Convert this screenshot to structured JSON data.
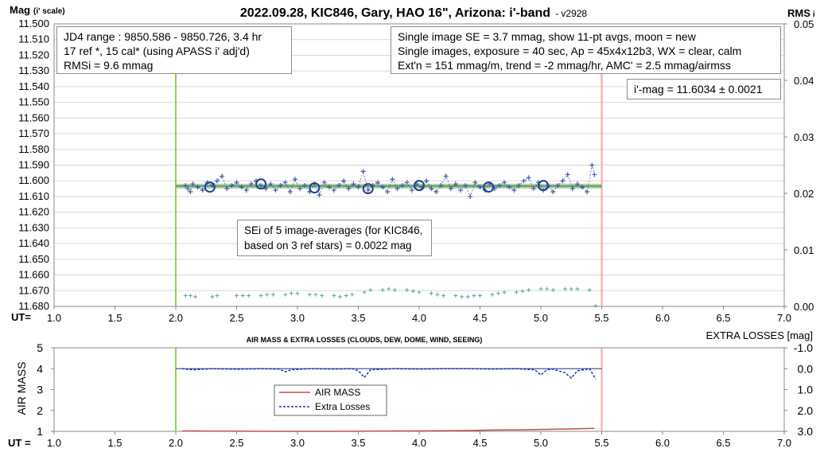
{
  "top_title": "2022.09.28, KIC846, Gary, HAO 16\", Arizona: i'-band",
  "top_title_version": "- v2928",
  "left_axis_label": "Mag",
  "left_axis_label_suffix": "(i' scale)",
  "right_axis_label": "RMS",
  "right_axis_label_suffix": "i",
  "ut_label_top": "UT=",
  "ut_label_bottom": "UT =",
  "info_box_left": [
    "JD4 range : 9850.586 - 9850.726, 3.4  hr",
    "17 ref *, 15 cal* (using APASS i' adj'd)",
    "RMSi = 9.6 mmag"
  ],
  "info_box_right": [
    "Single image SE = 3.7 mmag, show 11-pt avgs, moon = new",
    "Single images, exposure = 40 sec, Ap = 45x4x12b3, WX = clear, calm",
    "Ext'n = 151 mmag/m, trend = -2 mmag/hr, AMC' = 2.5 mmag/airmss"
  ],
  "imag_box": "i'-mag = 11.6034 ± 0.0021",
  "sei_box": [
    "SEi of 5 image-averages (for KIC846,",
    "based on 3 ref stars) = 0.0022 mag"
  ],
  "bottom_title": "AIR MASS & EXTRA LOSSES (CLOUDS, DEW, DOME, WIND, SEEING)",
  "bottom_left_label": "AIR MASS",
  "bottom_right_label": "EXTRA LOSSES [mag]",
  "legend": [
    "AIR MASS",
    "Extra Losses"
  ],
  "colors": {
    "points": "#3b5fa8",
    "avg_circle": "#1f3d99",
    "fit_band": "#8fbc7f",
    "fit_line": "#2e6a2e",
    "rms_points": "#5ba3b0",
    "air_mass": "#c0504d",
    "extra_losses": "#1f2fa0",
    "start_line": "#92d050",
    "end_line": "#f4a6a6"
  },
  "chart_data": [
    {
      "type": "scatter",
      "title": "2022.09.28, KIC846, Gary, HAO 16\", Arizona: i'-band",
      "xlabel": "UT=",
      "ylabel": "Mag (i' scale)",
      "y2label": "RMS i",
      "xlim": [
        1.0,
        7.0
      ],
      "ylim": [
        11.68,
        11.5
      ],
      "y2lim": [
        0.0,
        0.05
      ],
      "x_ticks": [
        "1.0",
        "1.5",
        "2.0",
        "2.5",
        "3.0",
        "3.5",
        "4.0",
        "4.5",
        "5.0",
        "5.5",
        "6.0",
        "6.5",
        "7.0"
      ],
      "y_ticks": [
        "11.500",
        "11.510",
        "11.520",
        "11.530",
        "11.540",
        "11.550",
        "11.560",
        "11.570",
        "11.580",
        "11.590",
        "11.600",
        "11.610",
        "11.620",
        "11.630",
        "11.640",
        "11.650",
        "11.660",
        "11.670",
        "11.680"
      ],
      "y2_ticks": [
        "0.05",
        "0.04",
        "0.03",
        "0.02",
        "0.01",
        "0.00"
      ],
      "grid": true,
      "start_ut": 2.0,
      "end_ut": 5.5,
      "fit_mag": 11.6034,
      "fit_x": [
        2.0,
        5.5
      ],
      "series": [
        {
          "name": "image mags",
          "x": [
            2.08,
            2.1,
            2.12,
            2.14,
            2.18,
            2.22,
            2.26,
            2.3,
            2.34,
            2.38,
            2.42,
            2.46,
            2.5,
            2.54,
            2.58,
            2.62,
            2.66,
            2.7,
            2.74,
            2.78,
            2.82,
            2.86,
            2.9,
            2.94,
            2.98,
            3.02,
            3.06,
            3.1,
            3.14,
            3.18,
            3.22,
            3.26,
            3.3,
            3.34,
            3.38,
            3.42,
            3.46,
            3.5,
            3.54,
            3.58,
            3.62,
            3.66,
            3.7,
            3.74,
            3.78,
            3.82,
            3.86,
            3.9,
            3.94,
            3.98,
            4.02,
            4.06,
            4.1,
            4.14,
            4.18,
            4.22,
            4.26,
            4.3,
            4.34,
            4.38,
            4.42,
            4.46,
            4.5,
            4.54,
            4.58,
            4.62,
            4.66,
            4.7,
            4.74,
            4.78,
            4.82,
            4.86,
            4.9,
            4.94,
            4.98,
            5.02,
            5.06,
            5.1,
            5.14,
            5.18,
            5.22,
            5.26,
            5.3,
            5.34,
            5.38,
            5.42,
            5.44
          ],
          "y": [
            11.603,
            11.605,
            11.607,
            11.602,
            11.604,
            11.606,
            11.601,
            11.603,
            11.6,
            11.597,
            11.605,
            11.603,
            11.601,
            11.604,
            11.606,
            11.602,
            11.6,
            11.603,
            11.605,
            11.602,
            11.606,
            11.603,
            11.601,
            11.607,
            11.599,
            11.605,
            11.603,
            11.607,
            11.602,
            11.609,
            11.601,
            11.604,
            11.606,
            11.603,
            11.6,
            11.605,
            11.602,
            11.604,
            11.594,
            11.606,
            11.603,
            11.601,
            11.604,
            11.607,
            11.599,
            11.605,
            11.603,
            11.601,
            11.606,
            11.602,
            11.604,
            11.6,
            11.605,
            11.607,
            11.603,
            11.597,
            11.605,
            11.602,
            11.606,
            11.603,
            11.61,
            11.601,
            11.604,
            11.606,
            11.602,
            11.605,
            11.603,
            11.601,
            11.604,
            11.606,
            11.603,
            11.6,
            11.598,
            11.605,
            11.601,
            11.606,
            11.603,
            11.607,
            11.603,
            11.6,
            11.596,
            11.605,
            11.602,
            11.604,
            11.607,
            11.59,
            11.596
          ]
        },
        {
          "name": "11-pt averages",
          "x": [
            2.28,
            2.7,
            3.14,
            3.58,
            4.0,
            4.57,
            5.02
          ],
          "y": [
            11.604,
            11.602,
            11.6045,
            11.605,
            11.603,
            11.604,
            11.603
          ]
        },
        {
          "name": "RMS",
          "axis": "right",
          "x": [
            2.08,
            2.12,
            2.16,
            2.3,
            2.34,
            2.5,
            2.55,
            2.6,
            2.7,
            2.75,
            2.8,
            2.9,
            2.95,
            3.0,
            3.1,
            3.15,
            3.2,
            3.3,
            3.35,
            3.4,
            3.45,
            3.55,
            3.6,
            3.7,
            3.75,
            3.8,
            3.9,
            3.95,
            4.0,
            4.1,
            4.15,
            4.2,
            4.3,
            4.35,
            4.4,
            4.45,
            4.5,
            4.6,
            4.65,
            4.7,
            4.8,
            4.85,
            4.9,
            5.0,
            5.05,
            5.1,
            5.2,
            5.25,
            5.3,
            5.4,
            5.45
          ],
          "y": [
            0.0019,
            0.0019,
            0.0017,
            0.0017,
            0.0019,
            0.0019,
            0.0019,
            0.0019,
            0.0019,
            0.0021,
            0.0021,
            0.0021,
            0.0023,
            0.0023,
            0.0021,
            0.0021,
            0.0019,
            0.0019,
            0.0017,
            0.0019,
            0.0021,
            0.0025,
            0.0029,
            0.0029,
            0.0031,
            0.0029,
            0.0029,
            0.0027,
            0.0025,
            0.0023,
            0.0021,
            0.0019,
            0.0019,
            0.0017,
            0.0017,
            0.0019,
            0.0019,
            0.0021,
            0.0023,
            0.0025,
            0.0025,
            0.0027,
            0.0029,
            0.0031,
            0.0031,
            0.0029,
            0.0031,
            0.0031,
            0.0031,
            0.0029,
            0.0001
          ]
        }
      ]
    },
    {
      "type": "line",
      "title": "AIR MASS & EXTRA LOSSES (CLOUDS, DEW, DOME, WIND, SEEING)",
      "xlabel": "UT =",
      "ylabel": "AIR MASS",
      "y2label": "EXTRA LOSSES [mag]",
      "xlim": [
        1.0,
        7.0
      ],
      "ylim": [
        1,
        5
      ],
      "y2lim": [
        3.0,
        -1.0
      ],
      "x_ticks": [
        "1.0",
        "1.5",
        "2.0",
        "2.5",
        "3.0",
        "3.5",
        "4.0",
        "4.5",
        "5.0",
        "5.5",
        "6.0",
        "6.5",
        "7.0"
      ],
      "y_ticks": [
        "5",
        "4",
        "3",
        "2",
        "1"
      ],
      "y2_ticks": [
        "-1.0",
        "0.0",
        "1.0",
        "2.0",
        "3.0"
      ],
      "grid": false,
      "legend_position": "center",
      "series": [
        {
          "name": "AIR MASS",
          "x": [
            2.05,
            2.3,
            2.5,
            2.8,
            3.0,
            3.3,
            3.6,
            3.9,
            4.2,
            4.4,
            4.6,
            4.8,
            5.0,
            5.2,
            5.44
          ],
          "y": [
            1.02,
            1.01,
            1.01,
            1.0,
            1.0,
            1.0,
            1.01,
            1.02,
            1.03,
            1.04,
            1.06,
            1.07,
            1.09,
            1.11,
            1.14
          ]
        },
        {
          "name": "Extra Losses",
          "axis": "right",
          "x": [
            2.05,
            2.15,
            2.3,
            2.5,
            2.7,
            2.85,
            2.9,
            2.95,
            3.1,
            3.3,
            3.45,
            3.5,
            3.55,
            3.6,
            3.8,
            4.0,
            4.2,
            4.4,
            4.6,
            4.8,
            4.95,
            5.0,
            5.05,
            5.1,
            5.2,
            5.25,
            5.3,
            5.4,
            5.45
          ],
          "y": [
            0.0,
            0.05,
            0.0,
            0.03,
            0.0,
            0.02,
            0.15,
            0.05,
            0.0,
            0.02,
            0.0,
            0.1,
            0.42,
            0.05,
            0.0,
            0.02,
            0.0,
            0.0,
            0.02,
            0.0,
            0.05,
            0.3,
            0.05,
            0.02,
            0.2,
            0.45,
            0.1,
            0.0,
            0.5
          ]
        }
      ]
    }
  ]
}
